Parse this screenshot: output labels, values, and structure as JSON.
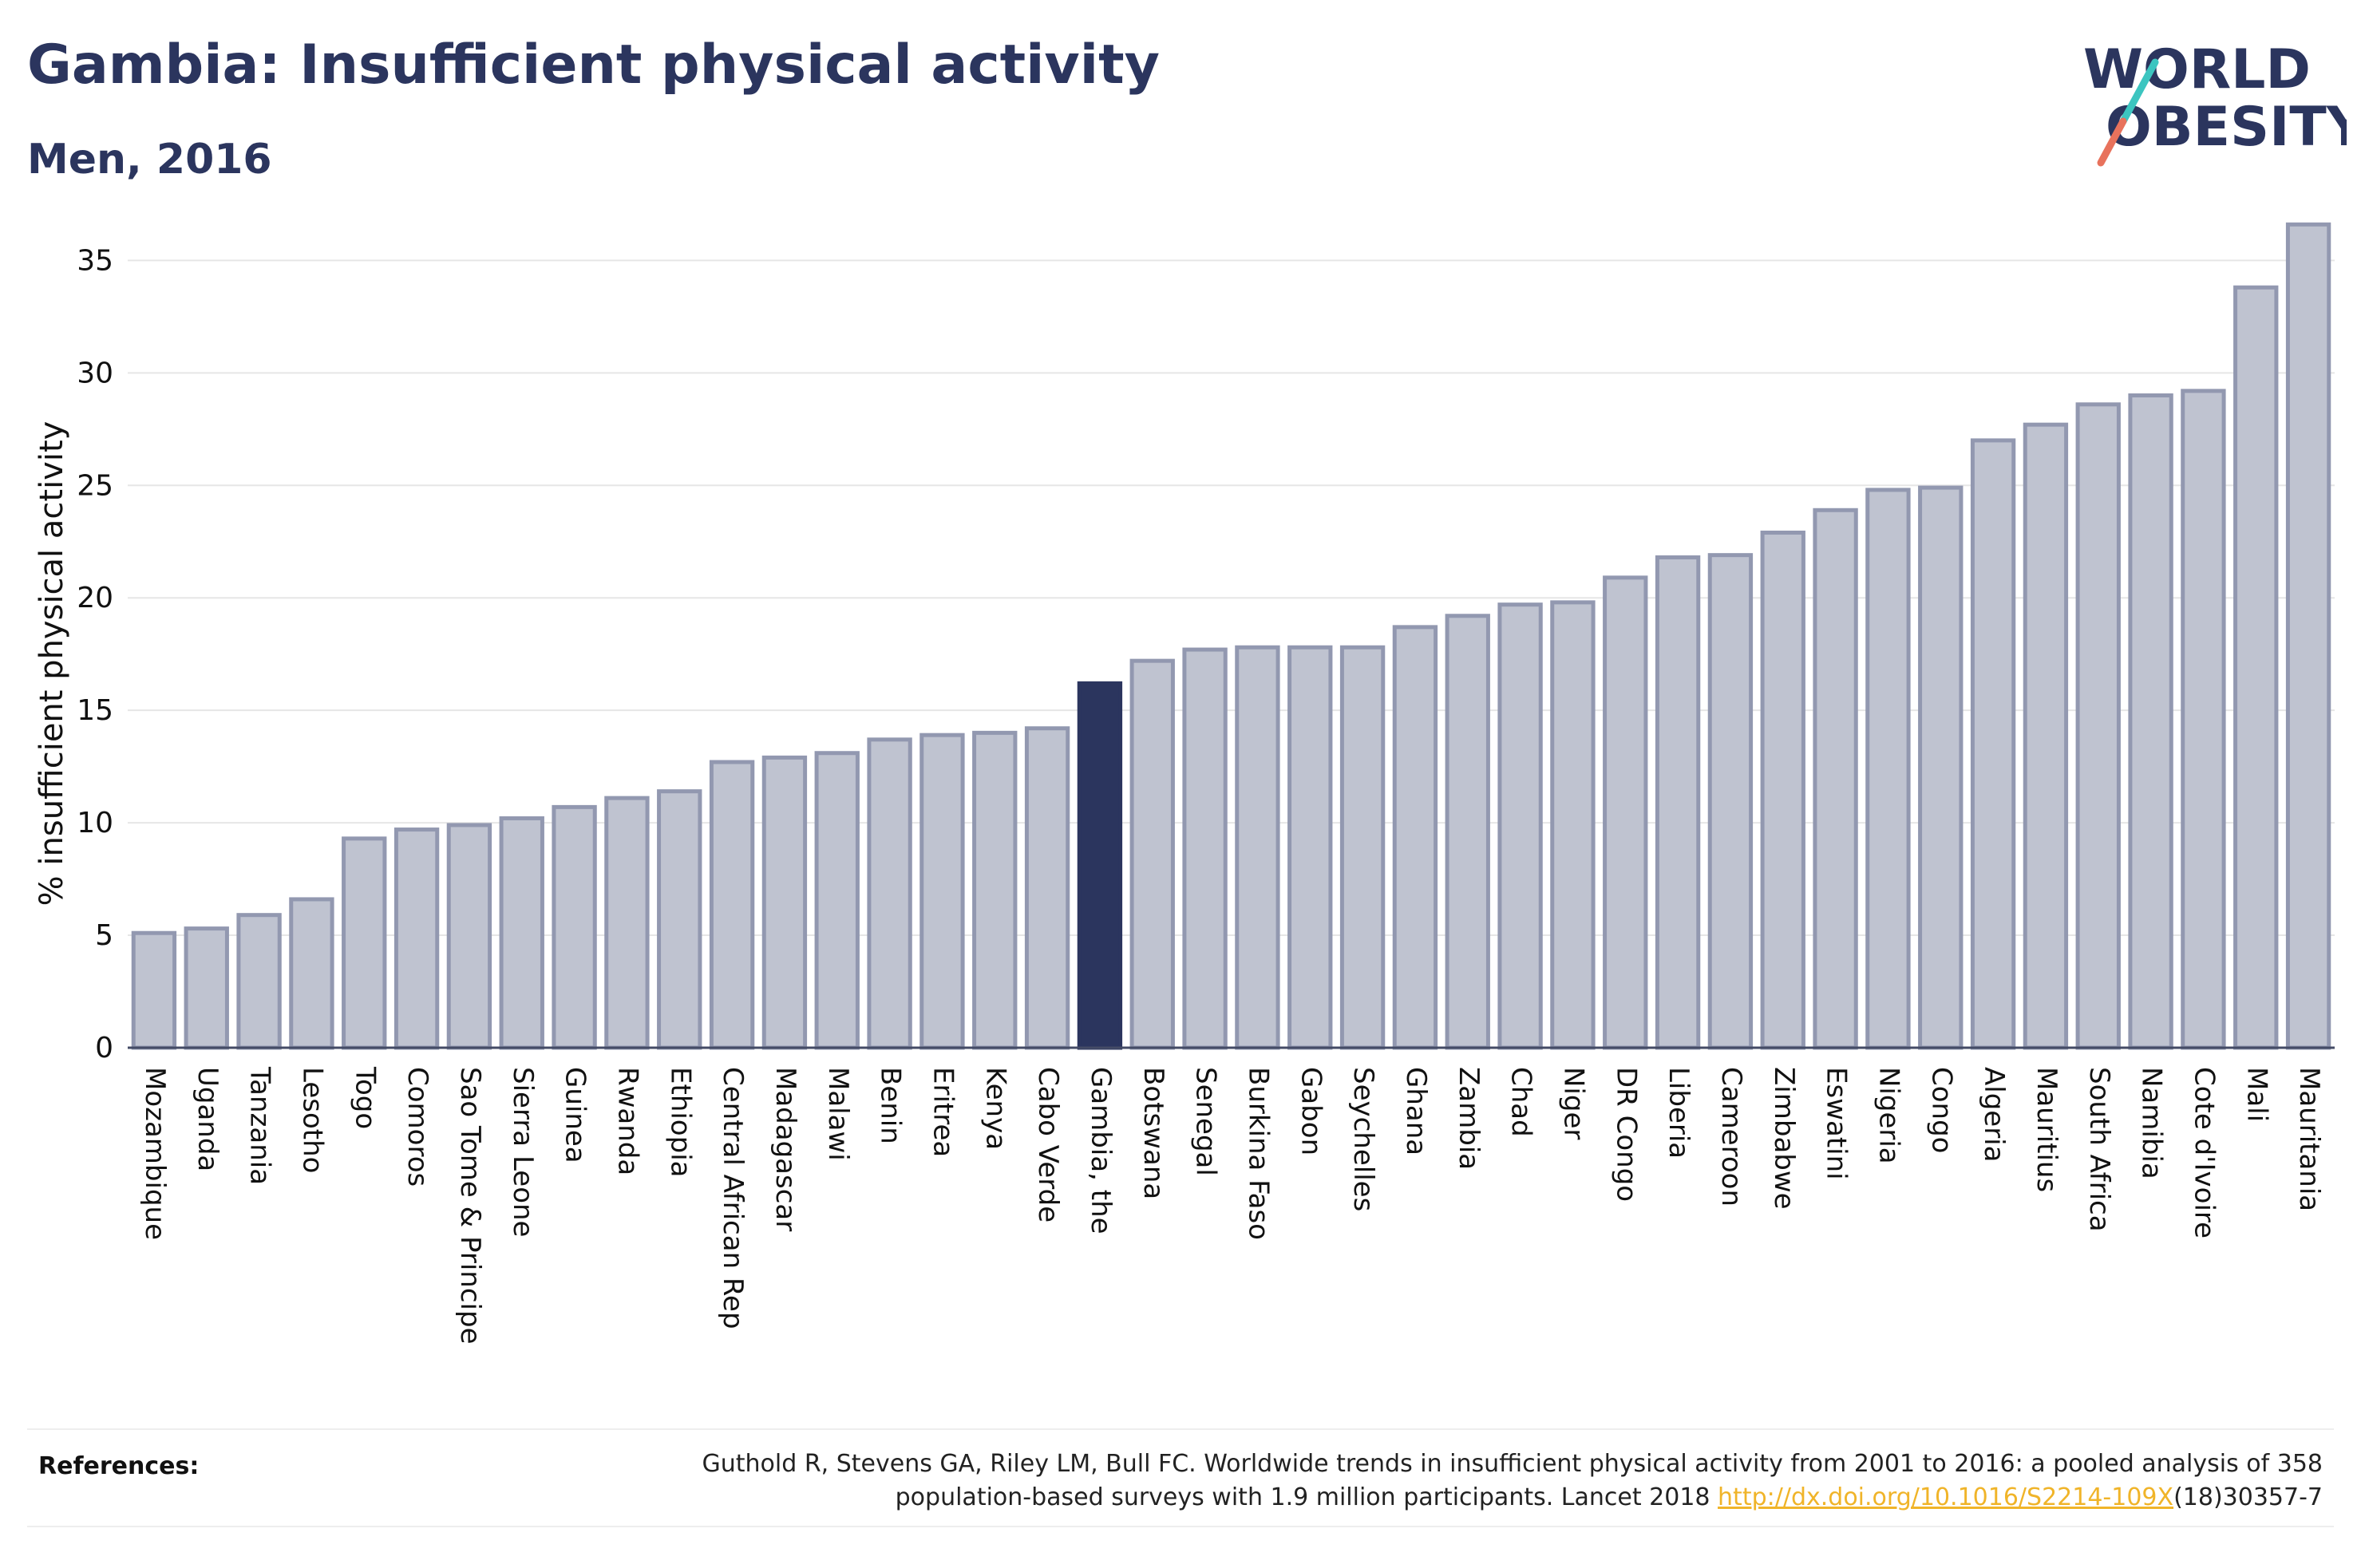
{
  "header": {
    "title": "Gambia: Insufficient physical activity",
    "subtitle": "Men, 2016"
  },
  "logo": {
    "line1": "WORLD",
    "line2": "OBESITY",
    "accent_colors": [
      "#3cc5c0",
      "#e8725c"
    ]
  },
  "colors": {
    "bar": "#bfc3d0",
    "bar_border": "#9298b0",
    "highlight": "#2b355e",
    "grid": "#e6e6e6",
    "axis": "#444b66"
  },
  "chart_data": {
    "type": "bar",
    "title": "Gambia: Insufficient physical activity",
    "subtitle": "Men, 2016",
    "xlabel": "",
    "ylabel": "% insufficient physical activity",
    "ylim": [
      0,
      37
    ],
    "yticks": [
      0,
      5,
      10,
      15,
      20,
      25,
      30,
      35
    ],
    "grid": true,
    "highlight_category": "Gambia, the",
    "categories": [
      "Mozambique",
      "Uganda",
      "Tanzania",
      "Lesotho",
      "Togo",
      "Comoros",
      "Sao Tome & Principe",
      "Sierra Leone",
      "Guinea",
      "Rwanda",
      "Ethiopia",
      "Central African Rep",
      "Madagascar",
      "Malawi",
      "Benin",
      "Eritrea",
      "Kenya",
      "Cabo Verde",
      "Gambia, the",
      "Botswana",
      "Senegal",
      "Burkina Faso",
      "Gabon",
      "Seychelles",
      "Ghana",
      "Zambia",
      "Chad",
      "Niger",
      "DR Congo",
      "Liberia",
      "Cameroon",
      "Zimbabwe",
      "Eswatini",
      "Nigeria",
      "Congo",
      "Algeria",
      "Mauritius",
      "South Africa",
      "Namibia",
      "Cote d'Ivoire",
      "Mali",
      "Mauritania"
    ],
    "values": [
      5.1,
      5.3,
      5.9,
      6.6,
      9.3,
      9.7,
      9.9,
      10.2,
      10.7,
      11.1,
      11.4,
      12.7,
      12.9,
      13.1,
      13.7,
      13.9,
      14.0,
      14.2,
      16.2,
      17.2,
      17.7,
      17.8,
      17.8,
      17.8,
      18.7,
      19.2,
      19.7,
      19.8,
      20.9,
      21.8,
      21.9,
      22.9,
      23.9,
      24.8,
      24.9,
      27.0,
      27.7,
      28.6,
      29.0,
      29.2,
      33.8,
      36.6
    ]
  },
  "references": {
    "label": "References:",
    "line1": "Guthold R, Stevens GA, Riley LM, Bull FC. Worldwide trends in insufficient physical activity from 2001 to 2016: a pooled analysis of 358",
    "line2_prefix": "population-based surveys with 1.9 million participants. Lancet 2018 ",
    "link": "http://dx.doi.org/10.1016/S2214-109X",
    "line2_suffix": "(18)30357-7"
  }
}
